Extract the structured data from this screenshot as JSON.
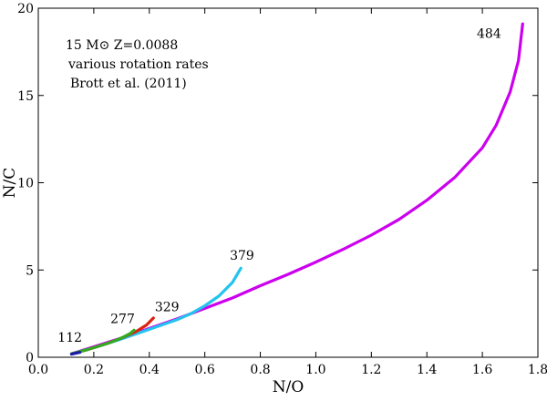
{
  "chart_data": {
    "type": "line",
    "xlabel": "N/O",
    "ylabel": "N/C",
    "xlim": [
      0.0,
      1.8
    ],
    "ylim": [
      0,
      20
    ],
    "x_ticks": [
      "0.0",
      "0.2",
      "0.4",
      "0.6",
      "0.8",
      "1.0",
      "1.2",
      "1.4",
      "1.6",
      "1.8"
    ],
    "y_ticks": [
      "0",
      "5",
      "10",
      "15",
      "20"
    ],
    "grid": false,
    "annotation_lines": [
      "15 M⊙  Z=0.0088",
      "various rotation rates",
      "Brott et al. (2011)"
    ],
    "series": [
      {
        "name": "484",
        "color": "#cc00ee",
        "points": [
          [
            0.12,
            0.2
          ],
          [
            0.2,
            0.6
          ],
          [
            0.3,
            1.1
          ],
          [
            0.4,
            1.65
          ],
          [
            0.5,
            2.2
          ],
          [
            0.6,
            2.8
          ],
          [
            0.7,
            3.4
          ],
          [
            0.8,
            4.1
          ],
          [
            0.9,
            4.75
          ],
          [
            1.0,
            5.45
          ],
          [
            1.1,
            6.2
          ],
          [
            1.2,
            7.0
          ],
          [
            1.3,
            7.9
          ],
          [
            1.4,
            9.0
          ],
          [
            1.5,
            10.3
          ],
          [
            1.6,
            12.0
          ],
          [
            1.65,
            13.3
          ],
          [
            1.7,
            15.2
          ],
          [
            1.73,
            17.0
          ],
          [
            1.745,
            19.1
          ]
        ]
      },
      {
        "name": "379",
        "color": "#22c4ee",
        "points": [
          [
            0.12,
            0.2
          ],
          [
            0.2,
            0.55
          ],
          [
            0.3,
            1.05
          ],
          [
            0.4,
            1.6
          ],
          [
            0.5,
            2.15
          ],
          [
            0.55,
            2.5
          ],
          [
            0.6,
            2.95
          ],
          [
            0.65,
            3.5
          ],
          [
            0.7,
            4.3
          ],
          [
            0.73,
            5.1
          ]
        ]
      },
      {
        "name": "329",
        "color": "#dd2211",
        "points": [
          [
            0.12,
            0.2
          ],
          [
            0.18,
            0.45
          ],
          [
            0.25,
            0.8
          ],
          [
            0.3,
            1.1
          ],
          [
            0.35,
            1.45
          ],
          [
            0.39,
            1.85
          ],
          [
            0.415,
            2.25
          ]
        ]
      },
      {
        "name": "277",
        "color": "#33aa22",
        "points": [
          [
            0.12,
            0.2
          ],
          [
            0.18,
            0.45
          ],
          [
            0.22,
            0.65
          ],
          [
            0.26,
            0.85
          ],
          [
            0.3,
            1.1
          ],
          [
            0.33,
            1.35
          ],
          [
            0.345,
            1.55
          ]
        ]
      },
      {
        "name": "112",
        "color": "#1a1aaa",
        "points": [
          [
            0.12,
            0.18
          ],
          [
            0.135,
            0.23
          ],
          [
            0.15,
            0.28
          ]
        ]
      }
    ],
    "curve_labels": [
      {
        "text": "484",
        "x": 1.58,
        "y": 18.3
      },
      {
        "text": "379",
        "x": 0.69,
        "y": 5.6
      },
      {
        "text": "329",
        "x": 0.42,
        "y": 2.65
      },
      {
        "text": "277",
        "x": 0.26,
        "y": 1.95
      },
      {
        "text": "112",
        "x": 0.07,
        "y": 0.9
      }
    ]
  }
}
